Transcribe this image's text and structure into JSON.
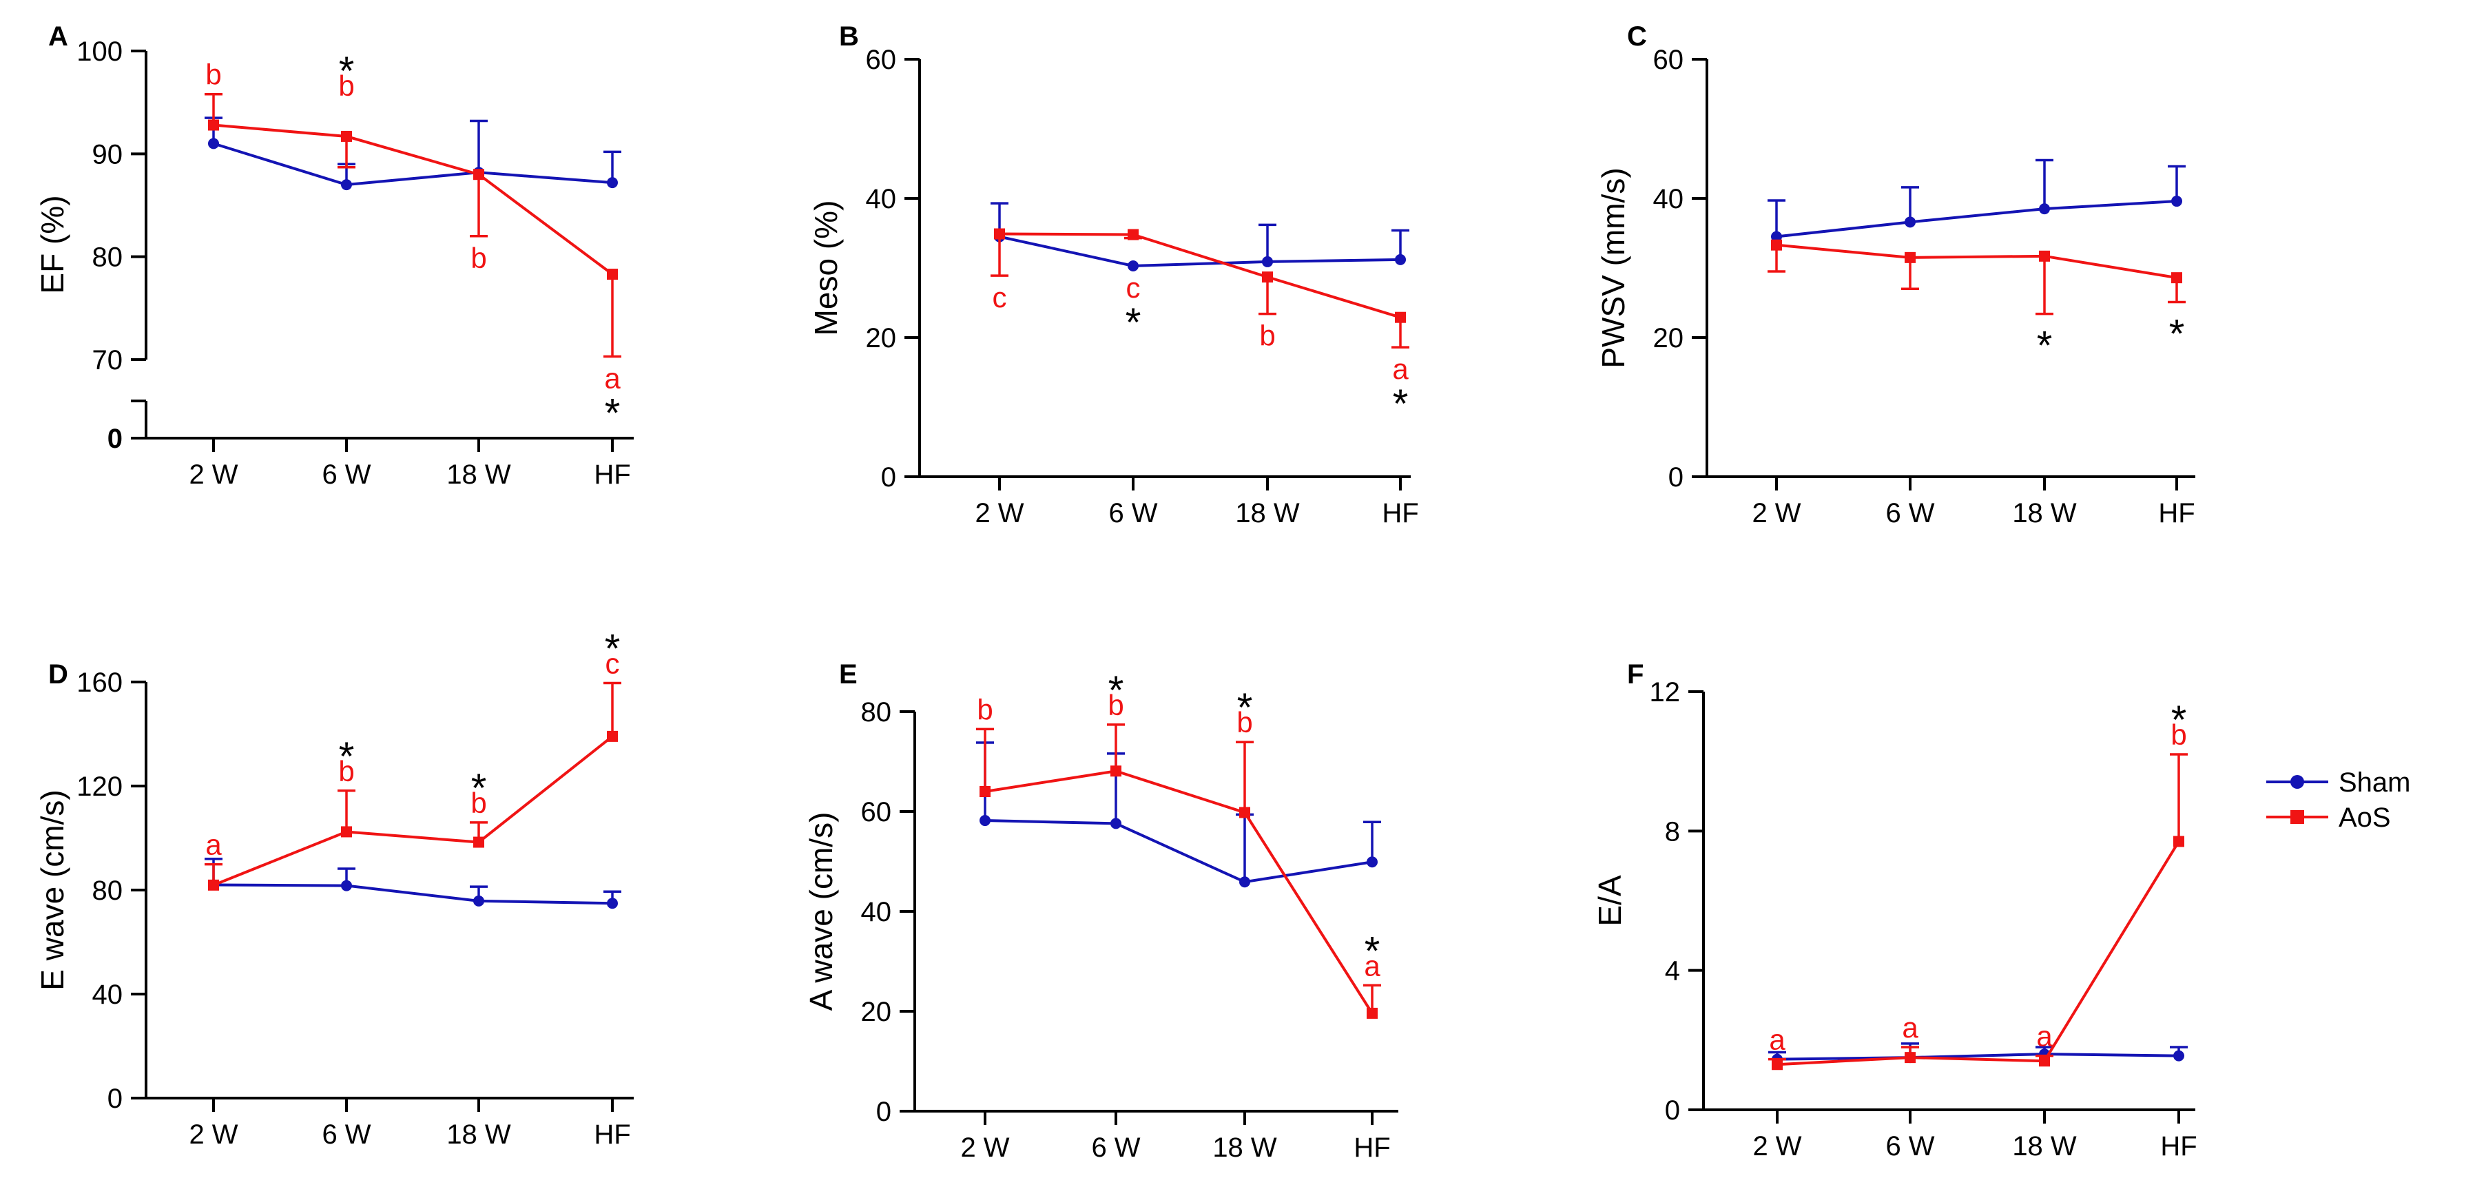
{
  "series_styles": {
    "Sham": {
      "color": "#1414b4",
      "marker": "circle"
    },
    "AoS": {
      "color": "#f01414",
      "marker": "square"
    }
  },
  "legend": {
    "items": [
      "Sham",
      "AoS"
    ]
  },
  "chart_data": [
    {
      "panel": "A",
      "type": "line",
      "ylabel": "EF (%)",
      "categories": [
        "2 W",
        "6 W",
        "18 W",
        "HF"
      ],
      "yticks": [
        0,
        70,
        80,
        90,
        100
      ],
      "ylim": [
        70,
        100
      ],
      "axis_break": true,
      "series": [
        {
          "name": "Sham",
          "values": [
            91,
            87,
            88.2,
            87.2
          ],
          "err": [
            2.5,
            2,
            5,
            3
          ]
        },
        {
          "name": "AoS",
          "values": [
            92.8,
            91.7,
            88,
            78.3
          ],
          "err": [
            3,
            3,
            6,
            8
          ]
        }
      ],
      "annotations": [
        {
          "index": 0,
          "stars": 0,
          "letter": "b",
          "pos": "above"
        },
        {
          "index": 1,
          "stars": 1,
          "letter": "b",
          "pos": "above"
        },
        {
          "index": 2,
          "stars": 0,
          "letter": "b",
          "pos": "below"
        },
        {
          "index": 3,
          "stars": 1,
          "letter": "a",
          "pos": "below"
        }
      ]
    },
    {
      "panel": "B",
      "type": "line",
      "ylabel": "Meso (%)",
      "categories": [
        "2 W",
        "6 W",
        "18 W",
        "HF"
      ],
      "yticks": [
        0,
        20,
        40,
        60
      ],
      "ylim": [
        0,
        60
      ],
      "series": [
        {
          "name": "Sham",
          "values": [
            34.5,
            30.3,
            30.9,
            31.2
          ],
          "err": [
            4.8,
            0,
            5.3,
            4.2
          ]
        },
        {
          "name": "AoS",
          "values": [
            34.9,
            34.8,
            28.7,
            22.9
          ],
          "err": [
            6,
            0.5,
            5.3,
            4.3
          ]
        }
      ],
      "annotations": [
        {
          "index": 0,
          "stars": 0,
          "letter": "c",
          "pos": "below"
        },
        {
          "index": 1,
          "stars": 1,
          "letter": "c",
          "pos": "below"
        },
        {
          "index": 2,
          "stars": 0,
          "letter": "b",
          "pos": "below"
        },
        {
          "index": 3,
          "stars": 1,
          "letter": "a",
          "pos": "below"
        }
      ]
    },
    {
      "panel": "C",
      "type": "line",
      "ylabel": "PWSV (mm/s)",
      "categories": [
        "2 W",
        "6 W",
        "18 W",
        "HF"
      ],
      "yticks": [
        0,
        20,
        40,
        60
      ],
      "ylim": [
        0,
        60
      ],
      "series": [
        {
          "name": "Sham",
          "values": [
            34.5,
            36.6,
            38.5,
            39.6
          ],
          "err": [
            5.2,
            5,
            7,
            5
          ]
        },
        {
          "name": "AoS",
          "values": [
            33.3,
            31.5,
            31.7,
            28.6
          ],
          "err": [
            3.8,
            4.5,
            8.3,
            3.5
          ]
        }
      ],
      "annotations": [
        {
          "index": 2,
          "stars": 1,
          "letter": "",
          "pos": "below"
        },
        {
          "index": 3,
          "stars": 1,
          "letter": "",
          "pos": "below"
        }
      ]
    },
    {
      "panel": "D",
      "type": "line",
      "ylabel": "E wave  (cm/s)",
      "categories": [
        "2 W",
        "6 W",
        "18 W",
        "HF"
      ],
      "yticks": [
        0,
        40,
        80,
        120,
        160
      ],
      "ylim": [
        0,
        160
      ],
      "series": [
        {
          "name": "Sham",
          "values": [
            82,
            81.7,
            75.8,
            74.9
          ],
          "err": [
            10,
            6.5,
            5.5,
            4.5
          ]
        },
        {
          "name": "AoS",
          "values": [
            81.9,
            102.4,
            98.4,
            139.1
          ],
          "err": [
            8,
            15.8,
            7.6,
            20.5
          ]
        }
      ],
      "annotations": [
        {
          "index": 0,
          "stars": 0,
          "letter": "a",
          "pos": "above"
        },
        {
          "index": 1,
          "stars": 1,
          "letter": "b",
          "pos": "above"
        },
        {
          "index": 2,
          "stars": 1,
          "letter": "b",
          "pos": "above"
        },
        {
          "index": 3,
          "stars": 1,
          "letter": "c",
          "pos": "above"
        }
      ]
    },
    {
      "panel": "E",
      "type": "line",
      "ylabel": "A wave  (cm/s)",
      "categories": [
        "2 W",
        "6 W",
        "18 W",
        "HF"
      ],
      "yticks": [
        0,
        20,
        40,
        60,
        80
      ],
      "ylim": [
        0,
        80
      ],
      "series": [
        {
          "name": "Sham",
          "values": [
            58.2,
            57.6,
            45.9,
            49.9
          ],
          "err": [
            15.6,
            14,
            13.5,
            8
          ]
        },
        {
          "name": "AoS",
          "values": [
            64,
            68.1,
            59.8,
            19.6
          ],
          "err": [
            12.5,
            9.3,
            14.1,
            5.6
          ]
        }
      ],
      "annotations": [
        {
          "index": 0,
          "stars": 0,
          "letter": "b",
          "pos": "above"
        },
        {
          "index": 1,
          "stars": 1,
          "letter": "b",
          "pos": "above"
        },
        {
          "index": 2,
          "stars": 1,
          "letter": "b",
          "pos": "above"
        },
        {
          "index": 3,
          "stars": 1,
          "letter": "a",
          "pos": "above"
        }
      ]
    },
    {
      "panel": "F",
      "type": "line",
      "ylabel": "E/A",
      "categories": [
        "2 W",
        "6 W",
        "18 W",
        "HF"
      ],
      "yticks": [
        0,
        4,
        8,
        12
      ],
      "ylim": [
        0,
        12
      ],
      "series": [
        {
          "name": "Sham",
          "values": [
            1.45,
            1.5,
            1.6,
            1.55
          ],
          "err": [
            0.2,
            0.4,
            0.2,
            0.25
          ]
        },
        {
          "name": "AoS",
          "values": [
            1.3,
            1.5,
            1.4,
            7.7
          ],
          "err": [
            0.15,
            0.3,
            0.15,
            2.5
          ]
        }
      ],
      "annotations": [
        {
          "index": 0,
          "stars": 0,
          "letter": "a",
          "pos": "above"
        },
        {
          "index": 1,
          "stars": 0,
          "letter": "a",
          "pos": "above"
        },
        {
          "index": 2,
          "stars": 0,
          "letter": "a",
          "pos": "above"
        },
        {
          "index": 3,
          "stars": 1,
          "letter": "b",
          "pos": "above"
        }
      ]
    }
  ]
}
